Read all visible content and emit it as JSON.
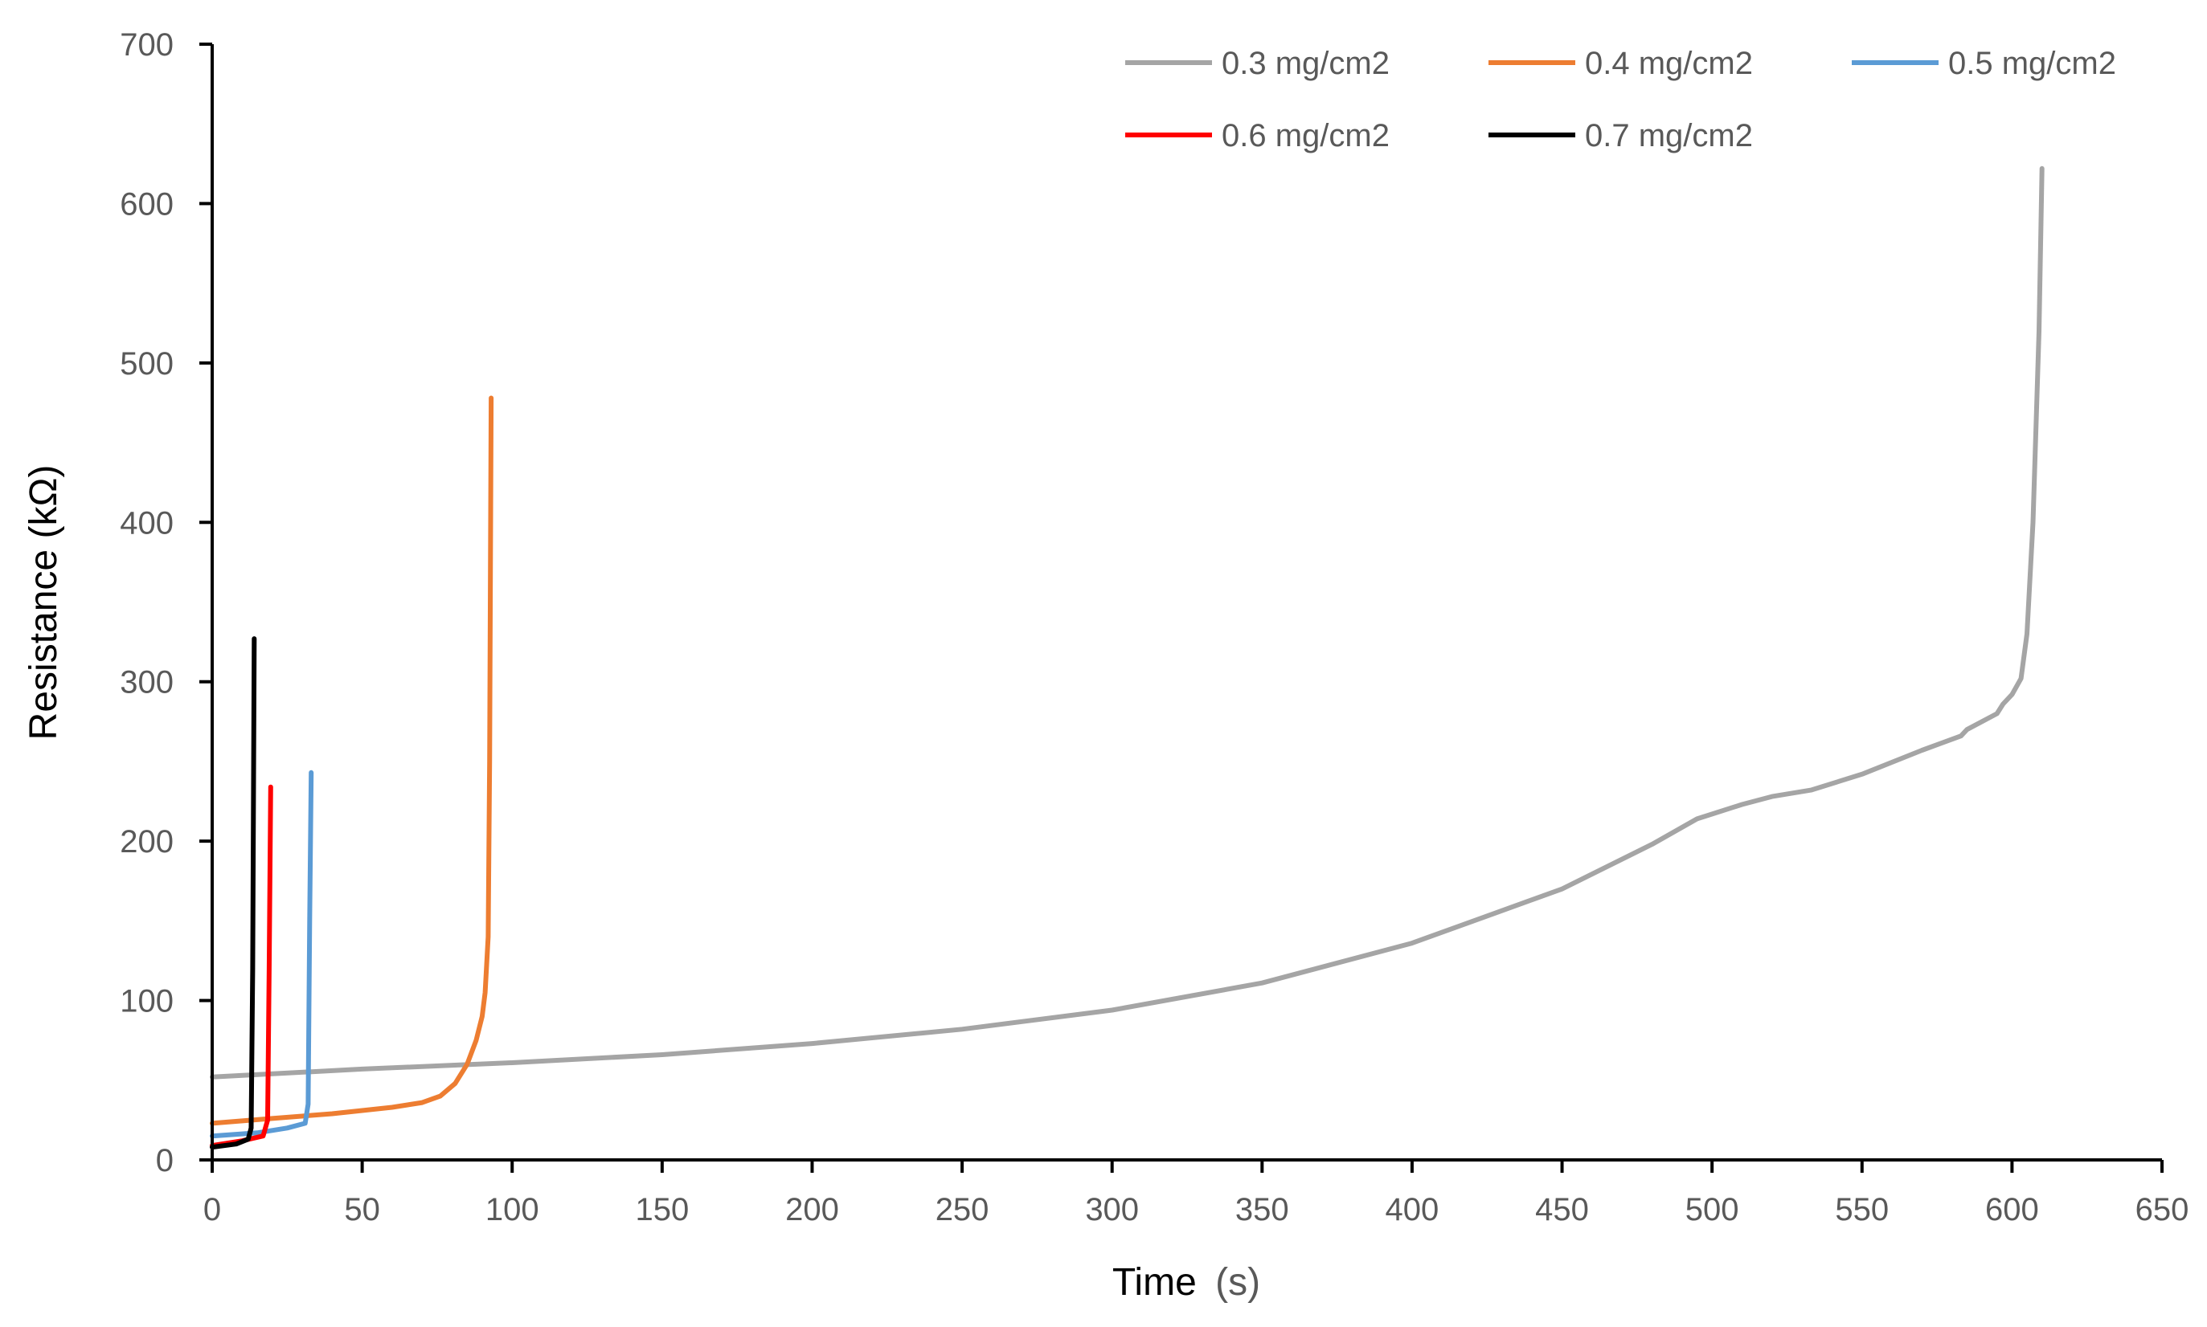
{
  "chart_data": {
    "type": "line",
    "title": "",
    "xlabel": "Time",
    "xlabel_unit": "(s)",
    "ylabel": "Resistance (kΩ)",
    "xlim": [
      0,
      650
    ],
    "ylim": [
      0,
      700
    ],
    "x_ticks": [
      "0",
      "50",
      "100",
      "150",
      "200",
      "250",
      "300",
      "350",
      "400",
      "450",
      "500",
      "550",
      "600",
      "650"
    ],
    "y_ticks": [
      "0",
      "100",
      "200",
      "300",
      "400",
      "500",
      "600",
      "700"
    ],
    "grid": false,
    "legend_position": "top-right",
    "series": [
      {
        "name": "0.3 mg/cm2",
        "color": "#a5a5a5",
        "points": [
          [
            0,
            52
          ],
          [
            50,
            57
          ],
          [
            100,
            61
          ],
          [
            150,
            66
          ],
          [
            200,
            73
          ],
          [
            250,
            82
          ],
          [
            300,
            94
          ],
          [
            350,
            111
          ],
          [
            400,
            136
          ],
          [
            450,
            170
          ],
          [
            480,
            198
          ],
          [
            495,
            214
          ],
          [
            510,
            223
          ],
          [
            520,
            228
          ],
          [
            533,
            232
          ],
          [
            550,
            242
          ],
          [
            570,
            257
          ],
          [
            583,
            266
          ],
          [
            585,
            270
          ],
          [
            595,
            280
          ],
          [
            597,
            286
          ],
          [
            600,
            292
          ],
          [
            603,
            302
          ],
          [
            605,
            330
          ],
          [
            607,
            400
          ],
          [
            609,
            520
          ],
          [
            610,
            622
          ]
        ]
      },
      {
        "name": "0.4 mg/cm2",
        "color": "#ed7d31",
        "points": [
          [
            0,
            23
          ],
          [
            20,
            26
          ],
          [
            40,
            29
          ],
          [
            60,
            33
          ],
          [
            70,
            36
          ],
          [
            76,
            40
          ],
          [
            81,
            48
          ],
          [
            85,
            60
          ],
          [
            88,
            75
          ],
          [
            90,
            90
          ],
          [
            91,
            105
          ],
          [
            92,
            140
          ],
          [
            92.5,
            250
          ],
          [
            93,
            478
          ]
        ]
      },
      {
        "name": "0.5 mg/cm2",
        "color": "#5b9bd5",
        "points": [
          [
            0,
            15
          ],
          [
            15,
            17
          ],
          [
            25,
            20
          ],
          [
            31,
            23
          ],
          [
            32,
            35
          ],
          [
            32.5,
            150
          ],
          [
            33,
            243
          ]
        ]
      },
      {
        "name": "0.6 mg/cm2",
        "color": "#ff0000",
        "points": [
          [
            0,
            9
          ],
          [
            10,
            12
          ],
          [
            17,
            15
          ],
          [
            18.5,
            25
          ],
          [
            19,
            120
          ],
          [
            19.5,
            234
          ]
        ]
      },
      {
        "name": "0.7 mg/cm2",
        "color": "#000000",
        "points": [
          [
            0,
            8
          ],
          [
            8,
            10
          ],
          [
            12,
            13
          ],
          [
            13,
            20
          ],
          [
            13.5,
            120
          ],
          [
            14,
            327
          ]
        ]
      }
    ]
  }
}
